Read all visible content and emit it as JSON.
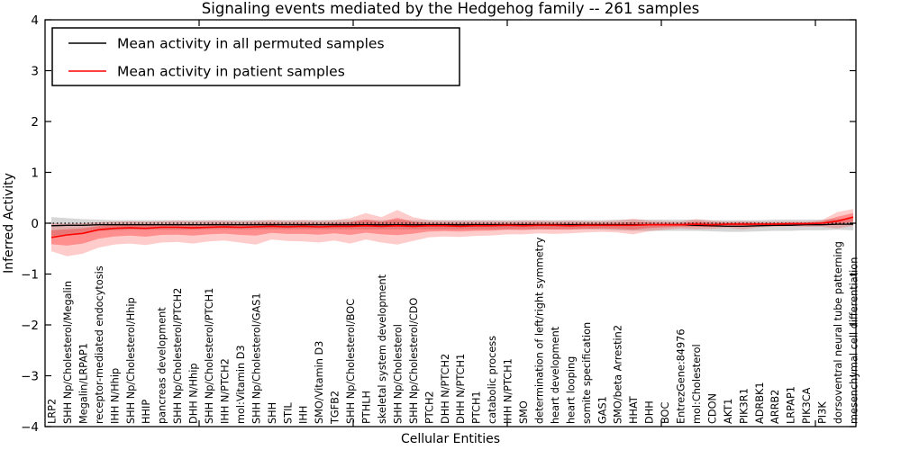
{
  "chart_data": {
    "type": "line",
    "title": "Signaling events mediated by the Hedgehog family -- 261 samples",
    "xlabel": "Cellular Entities",
    "ylabel": "Inferred Activity",
    "ylim": [
      -4,
      4
    ],
    "yticks": [
      -4,
      -3,
      -2,
      -1,
      0,
      1,
      2,
      3,
      4
    ],
    "grid": false,
    "zero_line": {
      "value": 0,
      "style": "dotted",
      "color": "#000000"
    },
    "legend": {
      "position": "upper-left",
      "border_color": "#000000",
      "background": "#ffffff"
    },
    "categories": [
      "LRP2",
      "SHH Np/Cholesterol/Megalin",
      "Megalin/LRPAP1",
      "receptor-mediated endocytosis",
      "IHH N/Hhip",
      "SHH Np/Cholesterol/Hhip",
      "HHIP",
      "pancreas development",
      "SHH Np/Cholesterol/PTCH2",
      "DHH N/Hhip",
      "SHH Np/Cholesterol/PTCH1",
      "IHH N/PTCH2",
      "mol:Vitamin D3",
      "SHH Np/Cholesterol/GAS1",
      "SHH",
      "STIL",
      "IHH",
      "SMO/Vitamin D3",
      "TGFB2",
      "SHH Np/Cholesterol/BOC",
      "PTHLH",
      "skeletal system development",
      "SHH Np/Cholesterol",
      "SHH Np/Cholesterol/CDO",
      "PTCH2",
      "DHH N/PTCH2",
      "DHH N/PTCH1",
      "PTCH1",
      "catabolic process",
      "IHH N/PTCH1",
      "SMO",
      "determination of left/right symmetry",
      "heart development",
      "heart looping",
      "somite specification",
      "GAS1",
      "SMO/beta Arrestin2",
      "HHAT",
      "DHH",
      "BOC",
      "EntrezGene:84976",
      "mol:Cholesterol",
      "CDON",
      "AKT1",
      "PIK3R1",
      "ADRBK1",
      "ARRB2",
      "LRPAP1",
      "PIK3CA",
      "PI3K",
      "dorsoventral neural tube patterning",
      "mesenchymal cell differentiation"
    ],
    "series": [
      {
        "name": "Mean activity in all permuted samples",
        "color": "#000000",
        "band_color": "#c8c8c8",
        "values": [
          -0.05,
          -0.04,
          -0.04,
          -0.03,
          -0.03,
          -0.03,
          -0.03,
          -0.03,
          -0.03,
          -0.03,
          -0.03,
          -0.03,
          -0.03,
          -0.03,
          -0.03,
          -0.03,
          -0.03,
          -0.03,
          -0.03,
          -0.03,
          -0.03,
          -0.03,
          -0.03,
          -0.03,
          -0.03,
          -0.03,
          -0.03,
          -0.03,
          -0.03,
          -0.03,
          -0.03,
          -0.03,
          -0.03,
          -0.03,
          -0.03,
          -0.03,
          -0.03,
          -0.03,
          -0.03,
          -0.03,
          -0.03,
          -0.04,
          -0.05,
          -0.06,
          -0.06,
          -0.05,
          -0.04,
          -0.04,
          -0.03,
          -0.03,
          -0.02,
          -0.02
        ],
        "band_upper": [
          0.12,
          0.1,
          0.08,
          0.07,
          0.06,
          0.06,
          0.06,
          0.06,
          0.06,
          0.06,
          0.06,
          0.06,
          0.06,
          0.06,
          0.06,
          0.06,
          0.06,
          0.06,
          0.06,
          0.06,
          0.06,
          0.06,
          0.06,
          0.06,
          0.06,
          0.06,
          0.06,
          0.06,
          0.06,
          0.06,
          0.06,
          0.06,
          0.06,
          0.06,
          0.06,
          0.06,
          0.07,
          0.07,
          0.07,
          0.07,
          0.07,
          0.07,
          0.06,
          0.06,
          0.06,
          0.06,
          0.07,
          0.07,
          0.07,
          0.07,
          0.08,
          0.09
        ],
        "band_lower": [
          -0.25,
          -0.22,
          -0.18,
          -0.15,
          -0.14,
          -0.13,
          -0.13,
          -0.13,
          -0.13,
          -0.13,
          -0.12,
          -0.12,
          -0.12,
          -0.12,
          -0.12,
          -0.12,
          -0.12,
          -0.12,
          -0.12,
          -0.12,
          -0.12,
          -0.12,
          -0.12,
          -0.12,
          -0.12,
          -0.12,
          -0.12,
          -0.12,
          -0.12,
          -0.12,
          -0.12,
          -0.12,
          -0.12,
          -0.12,
          -0.12,
          -0.13,
          -0.14,
          -0.15,
          -0.15,
          -0.15,
          -0.15,
          -0.15,
          -0.16,
          -0.17,
          -0.17,
          -0.16,
          -0.15,
          -0.15,
          -0.14,
          -0.14,
          -0.13,
          -0.14
        ]
      },
      {
        "name": "Mean activity in patient samples",
        "color": "#ff0000",
        "band_color": "#f4a0a0",
        "values": [
          -0.28,
          -0.23,
          -0.2,
          -0.13,
          -0.1,
          -0.09,
          -0.1,
          -0.08,
          -0.08,
          -0.09,
          -0.08,
          -0.07,
          -0.08,
          -0.07,
          -0.06,
          -0.07,
          -0.06,
          -0.07,
          -0.06,
          -0.06,
          -0.05,
          -0.06,
          -0.05,
          -0.06,
          -0.05,
          -0.05,
          -0.06,
          -0.05,
          -0.05,
          -0.04,
          -0.05,
          -0.04,
          -0.04,
          -0.05,
          -0.04,
          -0.04,
          -0.04,
          -0.04,
          -0.03,
          -0.03,
          -0.03,
          -0.02,
          -0.03,
          -0.02,
          -0.02,
          -0.02,
          -0.02,
          -0.01,
          -0.01,
          0.0,
          0.04,
          0.12
        ],
        "band_upper": [
          0.0,
          -0.01,
          0.0,
          0.02,
          0.03,
          0.04,
          0.03,
          0.04,
          0.05,
          0.04,
          0.05,
          0.05,
          0.04,
          0.05,
          0.06,
          0.05,
          0.06,
          0.05,
          0.06,
          0.1,
          0.2,
          0.12,
          0.26,
          0.12,
          0.06,
          0.05,
          0.05,
          0.05,
          0.05,
          0.04,
          0.05,
          0.05,
          0.04,
          0.05,
          0.04,
          0.04,
          0.05,
          0.09,
          0.05,
          0.04,
          0.03,
          0.08,
          0.05,
          0.03,
          0.04,
          0.03,
          0.03,
          0.03,
          0.03,
          0.06,
          0.22,
          0.28
        ],
        "band_lower": [
          -0.55,
          -0.65,
          -0.6,
          -0.48,
          -0.42,
          -0.4,
          -0.43,
          -0.38,
          -0.37,
          -0.4,
          -0.36,
          -0.34,
          -0.38,
          -0.42,
          -0.32,
          -0.35,
          -0.36,
          -0.38,
          -0.34,
          -0.4,
          -0.32,
          -0.38,
          -0.42,
          -0.35,
          -0.28,
          -0.26,
          -0.27,
          -0.25,
          -0.24,
          -0.22,
          -0.22,
          -0.2,
          -0.21,
          -0.2,
          -0.18,
          -0.17,
          -0.18,
          -0.22,
          -0.16,
          -0.13,
          -0.1,
          -0.12,
          -0.11,
          -0.09,
          -0.12,
          -0.08,
          -0.07,
          -0.06,
          -0.07,
          -0.07,
          -0.1,
          -0.05
        ]
      }
    ]
  }
}
